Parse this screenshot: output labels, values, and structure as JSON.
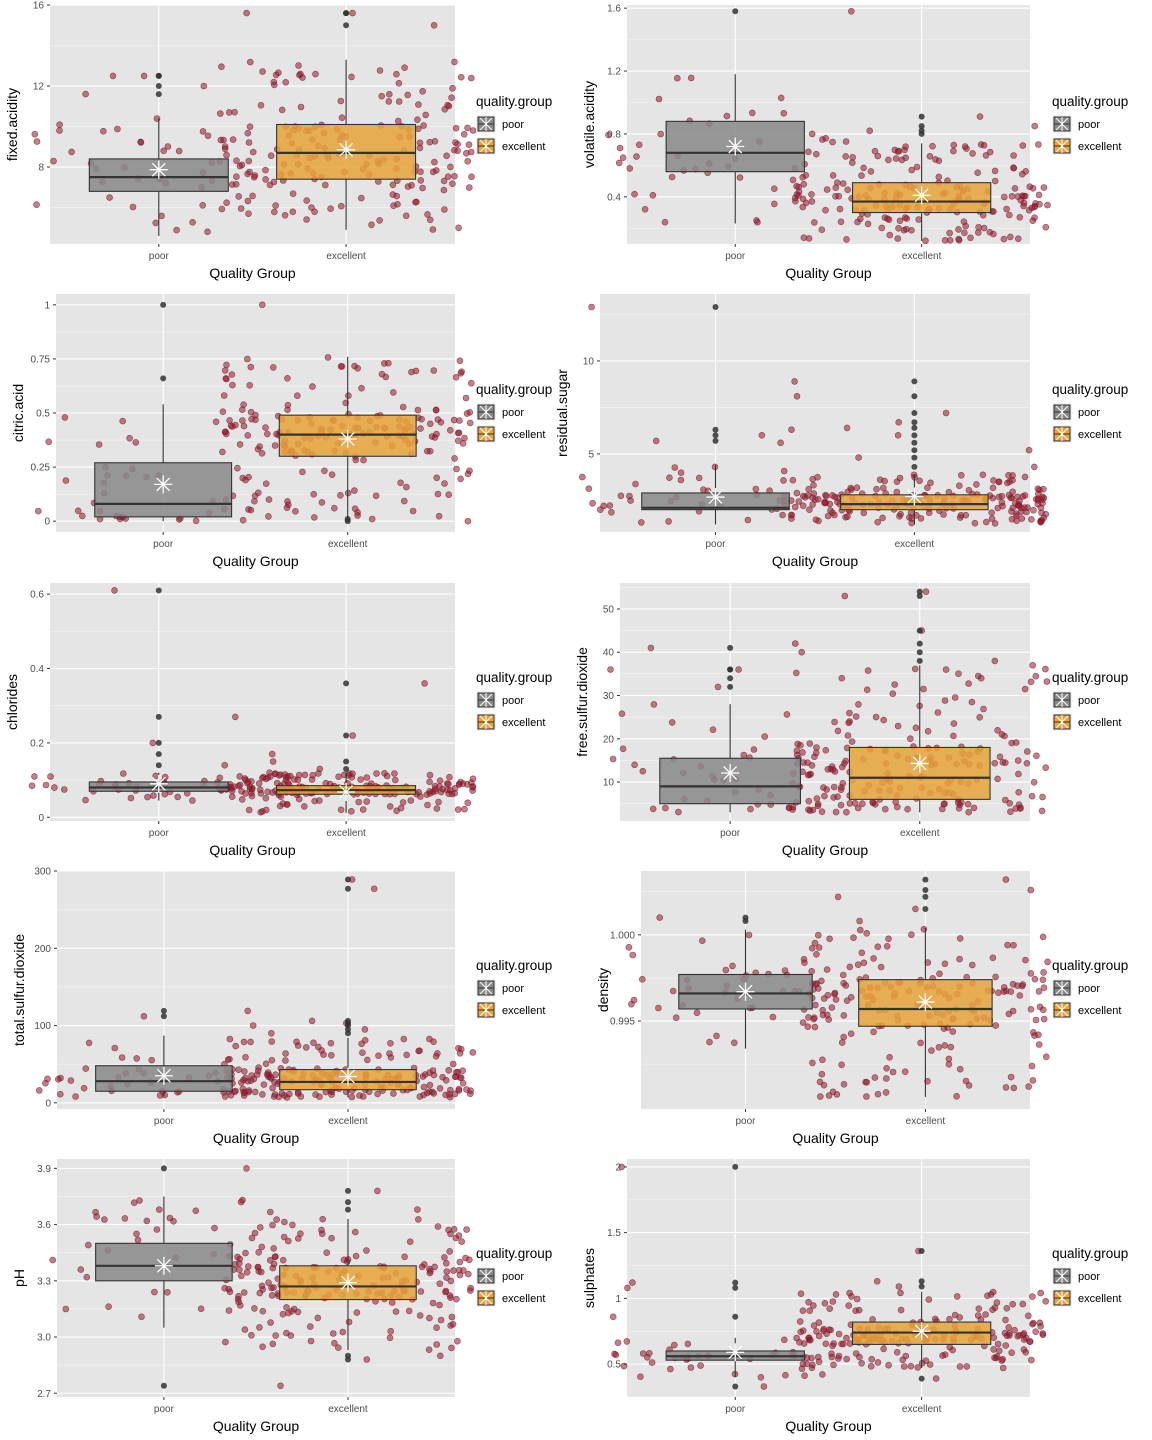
{
  "colors": {
    "panel_bg": "#e5e5e5",
    "grid_major": "#ffffff",
    "poor_fill": "#888888",
    "excellent_fill": "#e8a33a",
    "point": "#8b1a2b",
    "outlier": "#333333",
    "mean_marker": "#ffffff"
  },
  "chart_data": [
    {
      "type": "boxplot",
      "ylabel": "fixed.acidity",
      "xlabel": "Quality Group",
      "categories": [
        "poor",
        "excellent"
      ],
      "ylim": [
        4.2,
        16.0
      ],
      "yticks": [
        8,
        12,
        16
      ],
      "legend": {
        "title": "quality.group",
        "entries": [
          "poor",
          "excellent"
        ],
        "position": "right"
      },
      "boxes": [
        {
          "name": "poor",
          "q1": 6.8,
          "median": 7.5,
          "q3": 8.4,
          "whisker_low": 4.6,
          "whisker_high": 10.4,
          "mean": 7.87,
          "outliers": [
            11.6,
            12.0,
            12.5,
            12.5
          ],
          "jitter_min": 5.0,
          "jitter_max": 12.5,
          "n": 45
        },
        {
          "name": "excellent",
          "q1": 7.4,
          "median": 8.7,
          "q3": 10.1,
          "whisker_low": 4.9,
          "whisker_high": 13.3,
          "mean": 8.85,
          "outliers": [
            15.0,
            15.6,
            15.6
          ],
          "jitter_min": 4.9,
          "jitter_max": 15.6,
          "n": 190
        }
      ]
    },
    {
      "type": "boxplot",
      "ylabel": "volatile.acidity",
      "xlabel": "Quality Group",
      "categories": [
        "poor",
        "excellent"
      ],
      "ylim": [
        0.1,
        1.62
      ],
      "yticks": [
        0.4,
        0.8,
        1.2,
        1.6
      ],
      "legend": {
        "title": "quality.group",
        "entries": [
          "poor",
          "excellent"
        ],
        "position": "right"
      },
      "boxes": [
        {
          "name": "poor",
          "q1": 0.56,
          "median": 0.68,
          "q3": 0.88,
          "whisker_low": 0.23,
          "whisker_high": 1.18,
          "mean": 0.72,
          "outliers": [
            1.58
          ],
          "jitter_min": 0.23,
          "jitter_max": 1.58,
          "n": 45
        },
        {
          "name": "excellent",
          "q1": 0.3,
          "median": 0.37,
          "q3": 0.49,
          "whisker_low": 0.12,
          "whisker_high": 0.74,
          "mean": 0.41,
          "outliers": [
            0.8,
            0.82,
            0.85,
            0.91
          ],
          "jitter_min": 0.12,
          "jitter_max": 0.91,
          "n": 190
        }
      ]
    },
    {
      "type": "boxplot",
      "ylabel": "citric.acid",
      "xlabel": "Quality Group",
      "categories": [
        "poor",
        "excellent"
      ],
      "ylim": [
        -0.05,
        1.05
      ],
      "yticks": [
        0.0,
        0.25,
        0.5,
        0.75,
        1.0
      ],
      "legend": {
        "title": "quality.group",
        "entries": [
          "poor",
          "excellent"
        ],
        "position": "right"
      },
      "boxes": [
        {
          "name": "poor",
          "q1": 0.02,
          "median": 0.08,
          "q3": 0.27,
          "whisker_low": 0.0,
          "whisker_high": 0.54,
          "mean": 0.17,
          "outliers": [
            0.66,
            1.0
          ],
          "jitter_min": 0.0,
          "jitter_max": 1.0,
          "n": 45
        },
        {
          "name": "excellent",
          "q1": 0.3,
          "median": 0.4,
          "q3": 0.49,
          "whisker_low": 0.01,
          "whisker_high": 0.76,
          "mean": 0.38,
          "outliers": [
            0.0,
            0.01
          ],
          "jitter_min": 0.0,
          "jitter_max": 0.76,
          "n": 190
        }
      ]
    },
    {
      "type": "boxplot",
      "ylabel": "residual.sugar",
      "xlabel": "Quality Group",
      "categories": [
        "poor",
        "excellent"
      ],
      "ylim": [
        0.8,
        13.6
      ],
      "yticks": [
        5,
        10
      ],
      "legend": {
        "title": "quality.group",
        "entries": [
          "poor",
          "excellent"
        ],
        "position": "right"
      },
      "boxes": [
        {
          "name": "poor",
          "q1": 2.0,
          "median": 2.1,
          "q3": 2.9,
          "whisker_low": 1.2,
          "whisker_high": 4.4,
          "mean": 2.68,
          "outliers": [
            5.7,
            6.0,
            6.3,
            12.9
          ],
          "jitter_min": 1.2,
          "jitter_max": 12.9,
          "n": 45
        },
        {
          "name": "excellent",
          "q1": 2.0,
          "median": 2.3,
          "q3": 2.8,
          "whisker_low": 1.2,
          "whisker_high": 3.9,
          "mean": 2.71,
          "outliers": [
            4.3,
            4.8,
            5.2,
            5.6,
            6.0,
            6.4,
            6.7,
            7.2,
            8.1,
            8.9
          ],
          "jitter_min": 1.2,
          "jitter_max": 8.9,
          "n": 190
        }
      ]
    },
    {
      "type": "boxplot",
      "ylabel": "chlorides",
      "xlabel": "Quality Group",
      "categories": [
        "poor",
        "excellent"
      ],
      "ylim": [
        -0.01,
        0.63
      ],
      "yticks": [
        0.0,
        0.2,
        0.4,
        0.6
      ],
      "legend": {
        "title": "quality.group",
        "entries": [
          "poor",
          "excellent"
        ],
        "position": "right"
      },
      "boxes": [
        {
          "name": "poor",
          "q1": 0.07,
          "median": 0.08,
          "q3": 0.095,
          "whisker_low": 0.045,
          "whisker_high": 0.12,
          "mean": 0.09,
          "outliers": [
            0.14,
            0.17,
            0.2,
            0.27,
            0.61
          ],
          "jitter_min": 0.045,
          "jitter_max": 0.61,
          "n": 45
        },
        {
          "name": "excellent",
          "q1": 0.062,
          "median": 0.073,
          "q3": 0.085,
          "whisker_low": 0.012,
          "whisker_high": 0.12,
          "mean": 0.068,
          "outliers": [
            0.13,
            0.15,
            0.22,
            0.36
          ],
          "jitter_min": 0.012,
          "jitter_max": 0.36,
          "n": 190
        }
      ]
    },
    {
      "type": "boxplot",
      "ylabel": "free.sulfur.dioxide",
      "xlabel": "Quality Group",
      "categories": [
        "poor",
        "excellent"
      ],
      "ylim": [
        1,
        56
      ],
      "yticks": [
        10,
        20,
        30,
        40,
        50
      ],
      "legend": {
        "title": "quality.group",
        "entries": [
          "poor",
          "excellent"
        ],
        "position": "right"
      },
      "boxes": [
        {
          "name": "poor",
          "q1": 5,
          "median": 9,
          "q3": 15.5,
          "whisker_low": 3,
          "whisker_high": 28,
          "mean": 12.1,
          "outliers": [
            32,
            34,
            36,
            36,
            41
          ],
          "jitter_min": 3,
          "jitter_max": 41,
          "n": 45
        },
        {
          "name": "excellent",
          "q1": 6,
          "median": 11,
          "q3": 18,
          "whisker_low": 3,
          "whisker_high": 37,
          "mean": 14.3,
          "outliers": [
            38,
            40,
            42,
            45,
            53,
            54
          ],
          "jitter_min": 3,
          "jitter_max": 54,
          "n": 190
        }
      ]
    },
    {
      "type": "boxplot",
      "ylabel": "total.sulfur.dioxide",
      "xlabel": "Quality Group",
      "categories": [
        "poor",
        "excellent"
      ],
      "ylim": [
        -8,
        300
      ],
      "yticks": [
        0,
        100,
        200,
        300
      ],
      "legend": {
        "title": "quality.group",
        "entries": [
          "poor",
          "excellent"
        ],
        "position": "right"
      },
      "boxes": [
        {
          "name": "poor",
          "q1": 15,
          "median": 28,
          "q3": 48,
          "whisker_low": 8,
          "whisker_high": 87,
          "mean": 35,
          "outliers": [
            112,
            119
          ],
          "jitter_min": 8,
          "jitter_max": 119,
          "n": 45
        },
        {
          "name": "excellent",
          "q1": 17,
          "median": 27,
          "q3": 43,
          "whisker_low": 7,
          "whisker_high": 84,
          "mean": 34,
          "outliers": [
            90,
            95,
            100,
            103,
            106,
            277,
            289
          ],
          "jitter_min": 7,
          "jitter_max": 289,
          "n": 190
        }
      ]
    },
    {
      "type": "boxplot",
      "ylabel": "density",
      "xlabel": "Quality Group",
      "categories": [
        "poor",
        "excellent"
      ],
      "ylim": [
        0.9899,
        1.0037
      ],
      "yticks": [
        0.995,
        1.0
      ],
      "ytick_labels": [
        "0.995",
        "1.000"
      ],
      "legend": {
        "title": "quality.group",
        "entries": [
          "poor",
          "excellent"
        ],
        "position": "right"
      },
      "boxes": [
        {
          "name": "poor",
          "q1": 0.9957,
          "median": 0.9966,
          "q3": 0.9977,
          "whisker_low": 0.9934,
          "whisker_high": 1.0003,
          "mean": 0.9967,
          "outliers": [
            1.0008,
            1.001
          ],
          "jitter_min": 0.9934,
          "jitter_max": 1.001,
          "n": 45
        },
        {
          "name": "excellent",
          "q1": 0.9947,
          "median": 0.9957,
          "q3": 0.9974,
          "whisker_low": 0.9906,
          "whisker_high": 1.0004,
          "mean": 0.9961,
          "outliers": [
            1.0015,
            1.0022,
            1.0026,
            1.0032
          ],
          "jitter_min": 0.9906,
          "jitter_max": 1.0032,
          "n": 190
        }
      ]
    },
    {
      "type": "boxplot",
      "ylabel": "pH",
      "xlabel": "Quality Group",
      "categories": [
        "poor",
        "excellent"
      ],
      "ylim": [
        2.68,
        3.95
      ],
      "yticks": [
        2.7,
        3.0,
        3.3,
        3.6,
        3.9
      ],
      "ytick_labels": [
        "2.7",
        "3.0",
        "3.3",
        "3.6",
        "3.9"
      ],
      "legend": {
        "title": "quality.group",
        "entries": [
          "poor",
          "excellent"
        ],
        "position": "right"
      },
      "boxes": [
        {
          "name": "poor",
          "q1": 3.3,
          "median": 3.38,
          "q3": 3.5,
          "whisker_low": 3.05,
          "whisker_high": 3.75,
          "mean": 3.38,
          "outliers": [
            2.74,
            3.9
          ],
          "jitter_min": 2.74,
          "jitter_max": 3.9,
          "n": 45
        },
        {
          "name": "excellent",
          "q1": 3.2,
          "median": 3.27,
          "q3": 3.38,
          "whisker_low": 2.93,
          "whisker_high": 3.63,
          "mean": 3.29,
          "outliers": [
            2.88,
            2.9,
            3.68,
            3.72,
            3.78
          ],
          "jitter_min": 2.88,
          "jitter_max": 3.78,
          "n": 190
        }
      ]
    },
    {
      "type": "boxplot",
      "ylabel": "sulphates",
      "xlabel": "Quality Group",
      "categories": [
        "poor",
        "excellent"
      ],
      "ylim": [
        0.25,
        2.06
      ],
      "yticks": [
        0.5,
        1.0,
        1.5,
        2.0
      ],
      "legend": {
        "title": "quality.group",
        "entries": [
          "poor",
          "excellent"
        ],
        "position": "right"
      },
      "boxes": [
        {
          "name": "poor",
          "q1": 0.53,
          "median": 0.56,
          "q3": 0.6,
          "whisker_low": 0.4,
          "whisker_high": 0.7,
          "mean": 0.59,
          "outliers": [
            0.33,
            0.86,
            1.08,
            1.12,
            2.0
          ],
          "jitter_min": 0.33,
          "jitter_max": 2.0,
          "n": 45
        },
        {
          "name": "excellent",
          "q1": 0.65,
          "median": 0.74,
          "q3": 0.82,
          "whisker_low": 0.47,
          "whisker_high": 1.05,
          "mean": 0.75,
          "outliers": [
            0.39,
            1.09,
            1.13,
            1.36
          ],
          "jitter_min": 0.39,
          "jitter_max": 1.36,
          "n": 190
        }
      ]
    }
  ]
}
